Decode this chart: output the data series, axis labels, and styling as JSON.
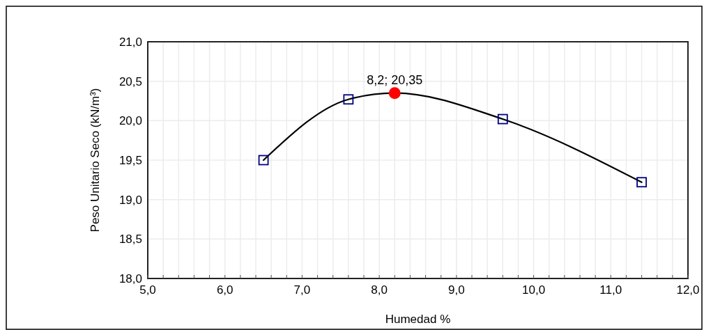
{
  "chart_data": {
    "type": "scatter",
    "xlabel": "Humedad %",
    "ylabel": "Peso Unitario Seco (kN/m³)",
    "xlim": [
      5,
      12
    ],
    "ylim": [
      18,
      21
    ],
    "xticks": [
      {
        "value": 5,
        "label": "5,0"
      },
      {
        "value": 5.2,
        "label": null
      },
      {
        "value": 5.4,
        "label": null
      },
      {
        "value": 5.6,
        "label": null
      },
      {
        "value": 5.8,
        "label": null
      },
      {
        "value": 6,
        "label": "6,0"
      },
      {
        "value": 6.2,
        "label": null
      },
      {
        "value": 6.4,
        "label": null
      },
      {
        "value": 6.6,
        "label": null
      },
      {
        "value": 6.8,
        "label": null
      },
      {
        "value": 7,
        "label": "7,0"
      },
      {
        "value": 7.2,
        "label": null
      },
      {
        "value": 7.4,
        "label": null
      },
      {
        "value": 7.6,
        "label": null
      },
      {
        "value": 7.8,
        "label": null
      },
      {
        "value": 8,
        "label": "8,0"
      },
      {
        "value": 8.2,
        "label": null
      },
      {
        "value": 8.4,
        "label": null
      },
      {
        "value": 8.6,
        "label": null
      },
      {
        "value": 8.8,
        "label": null
      },
      {
        "value": 9,
        "label": "9,0"
      },
      {
        "value": 9.2,
        "label": null
      },
      {
        "value": 9.4,
        "label": null
      },
      {
        "value": 9.6,
        "label": null
      },
      {
        "value": 9.8,
        "label": null
      },
      {
        "value": 10,
        "label": "10,0"
      },
      {
        "value": 10.2,
        "label": null
      },
      {
        "value": 10.4,
        "label": null
      },
      {
        "value": 10.6,
        "label": null
      },
      {
        "value": 10.8,
        "label": null
      },
      {
        "value": 11,
        "label": "11,0"
      },
      {
        "value": 11.2,
        "label": null
      },
      {
        "value": 11.4,
        "label": null
      },
      {
        "value": 11.6,
        "label": null
      },
      {
        "value": 11.8,
        "label": null
      },
      {
        "value": 12,
        "label": "12,0"
      }
    ],
    "yticks": [
      {
        "value": 18,
        "label": "18,0"
      },
      {
        "value": 18.5,
        "label": "18,5"
      },
      {
        "value": 19,
        "label": "19,0"
      },
      {
        "value": 19.5,
        "label": "19,5"
      },
      {
        "value": 20,
        "label": "20,0"
      },
      {
        "value": 20.5,
        "label": "20,5"
      },
      {
        "value": 21,
        "label": "21,0"
      }
    ],
    "grid": true,
    "series": [
      {
        "type": "line",
        "color": "#000000",
        "marker": "none",
        "line_style": "solid",
        "x": [
          6.5,
          7.6,
          8.2,
          9.6,
          11.4
        ],
        "values": [
          19.5,
          20.27,
          20.35,
          20.02,
          19.22
        ]
      },
      {
        "color": "#000080",
        "marker": "square",
        "x": [
          6.5,
          7.6,
          9.6,
          11.4
        ],
        "values": [
          19.5,
          20.27,
          20.02,
          19.22
        ]
      },
      {
        "color": "#ff0000",
        "marker": "circle",
        "x": [
          8.2
        ],
        "values": [
          20.35
        ]
      }
    ],
    "annotations": [
      {
        "text": "8,2; 20,35",
        "x": 8.2,
        "y": 20.35
      }
    ]
  }
}
